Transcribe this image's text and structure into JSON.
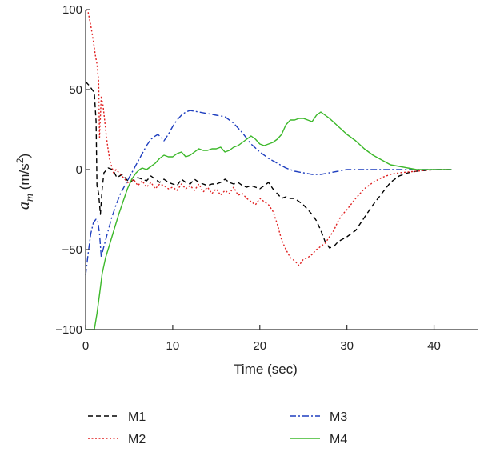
{
  "chart_data": {
    "type": "line",
    "xlabel": "Time (sec)",
    "ylabel_main": "a",
    "ylabel_sub": "m",
    "ylabel_unit_pre": " (m/s",
    "ylabel_unit_sup": "2",
    "ylabel_unit_post": ")",
    "xlim": [
      0,
      45
    ],
    "ylim": [
      -100,
      100
    ],
    "x_ticks": [
      0,
      10,
      20,
      30,
      40
    ],
    "y_ticks": [
      {
        "value": 100,
        "label": "100"
      },
      {
        "value": 50,
        "label": "50"
      },
      {
        "value": 0,
        "label": "0"
      },
      {
        "value": -50,
        "label": "−50"
      },
      {
        "value": -100,
        "label": "−100"
      }
    ],
    "grid": false,
    "legend_position": "bottom",
    "series": [
      {
        "name": "M1",
        "color": "#000000",
        "dash": "6,4",
        "legend_col": 0,
        "legend_row": 0,
        "points": [
          [
            0,
            55
          ],
          [
            0.5,
            52
          ],
          [
            1.0,
            48
          ],
          [
            1.2,
            30
          ],
          [
            1.3,
            -10
          ],
          [
            1.5,
            -15
          ],
          [
            1.7,
            -28
          ],
          [
            1.9,
            -12
          ],
          [
            2.1,
            -2
          ],
          [
            2.6,
            1
          ],
          [
            3.1,
            0
          ],
          [
            3.6,
            -5
          ],
          [
            4.2,
            -3
          ],
          [
            5,
            -8
          ],
          [
            6,
            -5
          ],
          [
            6.5,
            -6
          ],
          [
            7,
            -7
          ],
          [
            7.5,
            -4
          ],
          [
            8,
            -6
          ],
          [
            8.5,
            -8
          ],
          [
            9,
            -6
          ],
          [
            9.5,
            -8
          ],
          [
            10,
            -9
          ],
          [
            10.5,
            -10
          ],
          [
            11,
            -6
          ],
          [
            11.5,
            -8
          ],
          [
            12,
            -9
          ],
          [
            12.5,
            -6
          ],
          [
            13,
            -8
          ],
          [
            13.5,
            -9
          ],
          [
            14,
            -10
          ],
          [
            14.5,
            -9
          ],
          [
            15,
            -9
          ],
          [
            15.5,
            -8
          ],
          [
            16,
            -6
          ],
          [
            16.5,
            -8
          ],
          [
            17,
            -9
          ],
          [
            17.5,
            -8
          ],
          [
            18,
            -10
          ],
          [
            18.5,
            -11
          ],
          [
            19,
            -10
          ],
          [
            19.5,
            -11
          ],
          [
            20,
            -12
          ],
          [
            20.5,
            -10
          ],
          [
            21,
            -8
          ],
          [
            21.5,
            -12
          ],
          [
            22,
            -15
          ],
          [
            22.5,
            -18
          ],
          [
            23,
            -17
          ],
          [
            23.5,
            -18
          ],
          [
            24,
            -18
          ],
          [
            24.5,
            -20
          ],
          [
            25,
            -22
          ],
          [
            25.5,
            -25
          ],
          [
            26,
            -28
          ],
          [
            26.5,
            -32
          ],
          [
            27,
            -38
          ],
          [
            27.5,
            -45
          ],
          [
            28,
            -49
          ],
          [
            28.5,
            -48
          ],
          [
            29,
            -45
          ],
          [
            30,
            -42
          ],
          [
            31,
            -38
          ],
          [
            32,
            -30
          ],
          [
            33,
            -22
          ],
          [
            34,
            -15
          ],
          [
            35,
            -8
          ],
          [
            36,
            -4
          ],
          [
            37,
            -2
          ],
          [
            38,
            -1
          ],
          [
            40,
            0
          ],
          [
            42,
            0
          ]
        ]
      },
      {
        "name": "M2",
        "color": "#e02020",
        "dash": "2,2.5",
        "legend_col": 0,
        "legend_row": 1,
        "points": [
          [
            0,
            100
          ],
          [
            0.3,
            98
          ],
          [
            0.6,
            90
          ],
          [
            0.9,
            80
          ],
          [
            1.1,
            72
          ],
          [
            1.3,
            66
          ],
          [
            1.5,
            55
          ],
          [
            1.6,
            20
          ],
          [
            1.8,
            46
          ],
          [
            2.0,
            40
          ],
          [
            2.2,
            30
          ],
          [
            2.4,
            20
          ],
          [
            2.6,
            12
          ],
          [
            2.8,
            5
          ],
          [
            3,
            2
          ],
          [
            3.2,
            -2
          ],
          [
            3.5,
            0
          ],
          [
            4,
            -3
          ],
          [
            4.5,
            -6
          ],
          [
            5,
            -9
          ],
          [
            5.5,
            -6
          ],
          [
            6,
            -10
          ],
          [
            6.5,
            -7
          ],
          [
            7,
            -11
          ],
          [
            7.5,
            -8
          ],
          [
            8,
            -12
          ],
          [
            8.5,
            -9
          ],
          [
            9,
            -10
          ],
          [
            9.5,
            -12
          ],
          [
            10,
            -11
          ],
          [
            10.5,
            -13
          ],
          [
            11,
            -9
          ],
          [
            11.5,
            -12
          ],
          [
            12,
            -10
          ],
          [
            12.5,
            -13
          ],
          [
            13,
            -9
          ],
          [
            13.5,
            -14
          ],
          [
            14,
            -11
          ],
          [
            14.5,
            -15
          ],
          [
            15,
            -12
          ],
          [
            15.5,
            -16
          ],
          [
            16,
            -13
          ],
          [
            16.5,
            -15
          ],
          [
            17,
            -11
          ],
          [
            17.5,
            -16
          ],
          [
            18,
            -15
          ],
          [
            18.5,
            -18
          ],
          [
            19,
            -20
          ],
          [
            19.5,
            -22
          ],
          [
            20,
            -18
          ],
          [
            20.5,
            -20
          ],
          [
            21,
            -22
          ],
          [
            21.5,
            -26
          ],
          [
            22,
            -34
          ],
          [
            22.5,
            -44
          ],
          [
            23,
            -50
          ],
          [
            23.5,
            -55
          ],
          [
            24,
            -57
          ],
          [
            24.5,
            -60
          ],
          [
            25,
            -56
          ],
          [
            25.5,
            -55
          ],
          [
            26,
            -53
          ],
          [
            26.5,
            -50
          ],
          [
            27,
            -48
          ],
          [
            27.5,
            -46
          ],
          [
            28,
            -42
          ],
          [
            28.5,
            -38
          ],
          [
            29,
            -32
          ],
          [
            29.5,
            -28
          ],
          [
            30,
            -25
          ],
          [
            31,
            -18
          ],
          [
            32,
            -12
          ],
          [
            33,
            -8
          ],
          [
            34,
            -5
          ],
          [
            35,
            -3
          ],
          [
            36,
            -2
          ],
          [
            38,
            -1
          ],
          [
            40,
            0
          ],
          [
            42,
            0
          ]
        ]
      },
      {
        "name": "M3",
        "color": "#1f3fbf",
        "dash": "8,3,2,3",
        "legend_col": 1,
        "legend_row": 0,
        "points": [
          [
            0,
            -66
          ],
          [
            0.3,
            -52
          ],
          [
            0.6,
            -40
          ],
          [
            0.9,
            -33
          ],
          [
            1.2,
            -31
          ],
          [
            1.4,
            -32
          ],
          [
            1.6,
            -40
          ],
          [
            1.8,
            -55
          ],
          [
            2.0,
            -50
          ],
          [
            2.5,
            -40
          ],
          [
            3,
            -30
          ],
          [
            3.5,
            -22
          ],
          [
            4,
            -15
          ],
          [
            4.5,
            -10
          ],
          [
            5,
            -5
          ],
          [
            5.5,
            0
          ],
          [
            6,
            5
          ],
          [
            6.5,
            10
          ],
          [
            7,
            15
          ],
          [
            7.5,
            19
          ],
          [
            8,
            21
          ],
          [
            8.3,
            22
          ],
          [
            8.7,
            20
          ],
          [
            9,
            18
          ],
          [
            9.5,
            22
          ],
          [
            10,
            27
          ],
          [
            10.5,
            31
          ],
          [
            11,
            34
          ],
          [
            11.5,
            36
          ],
          [
            12,
            37
          ],
          [
            13,
            36
          ],
          [
            14,
            35
          ],
          [
            15,
            34
          ],
          [
            16,
            33
          ],
          [
            17,
            29
          ],
          [
            18,
            23
          ],
          [
            19,
            16
          ],
          [
            20,
            11
          ],
          [
            21,
            7
          ],
          [
            22,
            4
          ],
          [
            23,
            1
          ],
          [
            24,
            -1
          ],
          [
            25,
            -2
          ],
          [
            26,
            -3
          ],
          [
            27,
            -3
          ],
          [
            28,
            -2
          ],
          [
            29,
            -1
          ],
          [
            30,
            0
          ],
          [
            31,
            0
          ],
          [
            32,
            0
          ],
          [
            35,
            0
          ],
          [
            38,
            0
          ],
          [
            40,
            0
          ],
          [
            42,
            0
          ]
        ]
      },
      {
        "name": "M4",
        "color": "#3cb82a",
        "dash": "",
        "legend_col": 1,
        "legend_row": 1,
        "points": [
          [
            0,
            -100
          ],
          [
            1,
            -100
          ],
          [
            1.3,
            -90
          ],
          [
            1.6,
            -78
          ],
          [
            1.9,
            -65
          ],
          [
            2.3,
            -55
          ],
          [
            2.8,
            -46
          ],
          [
            3.3,
            -37
          ],
          [
            3.8,
            -28
          ],
          [
            4.3,
            -20
          ],
          [
            4.8,
            -12
          ],
          [
            5.3,
            -6
          ],
          [
            5.8,
            -2
          ],
          [
            6.2,
            0
          ],
          [
            6.5,
            1
          ],
          [
            7,
            0
          ],
          [
            7.5,
            2
          ],
          [
            8,
            4
          ],
          [
            8.5,
            7
          ],
          [
            9,
            9
          ],
          [
            9.5,
            8
          ],
          [
            10,
            8
          ],
          [
            10.5,
            10
          ],
          [
            11,
            11
          ],
          [
            11.5,
            8
          ],
          [
            12,
            9
          ],
          [
            12.5,
            11
          ],
          [
            13,
            13
          ],
          [
            13.5,
            12
          ],
          [
            14,
            12
          ],
          [
            14.5,
            13
          ],
          [
            15,
            13
          ],
          [
            15.5,
            14
          ],
          [
            16,
            11
          ],
          [
            16.5,
            12
          ],
          [
            17,
            14
          ],
          [
            17.5,
            15
          ],
          [
            18,
            17
          ],
          [
            18.5,
            19
          ],
          [
            19,
            21
          ],
          [
            19.5,
            19
          ],
          [
            20,
            16
          ],
          [
            20.5,
            15
          ],
          [
            21,
            16
          ],
          [
            21.5,
            17
          ],
          [
            22,
            19
          ],
          [
            22.5,
            22
          ],
          [
            23,
            28
          ],
          [
            23.5,
            31
          ],
          [
            24,
            31
          ],
          [
            24.5,
            32
          ],
          [
            25,
            32
          ],
          [
            25.5,
            31
          ],
          [
            26,
            30
          ],
          [
            26.5,
            34
          ],
          [
            27,
            36
          ],
          [
            27.5,
            34
          ],
          [
            28,
            32
          ],
          [
            29,
            27
          ],
          [
            30,
            22
          ],
          [
            31,
            18
          ],
          [
            32,
            13
          ],
          [
            33,
            9
          ],
          [
            34,
            6
          ],
          [
            35,
            3
          ],
          [
            36,
            2
          ],
          [
            37,
            1
          ],
          [
            38,
            0
          ],
          [
            40,
            0
          ],
          [
            42,
            0
          ]
        ]
      }
    ]
  }
}
